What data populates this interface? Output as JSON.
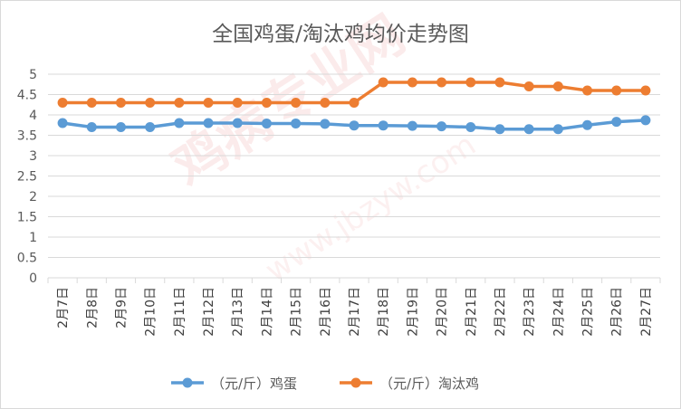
{
  "watermark": {
    "brand": "鸡病专业网",
    "url": "www.jbzyw.com"
  },
  "colors": {
    "egg": "#5b9bd5",
    "hen": "#ed7d31",
    "grid": "#d9d9d9",
    "text": "#595959"
  },
  "chart_data": {
    "type": "line",
    "title": "全国鸡蛋/淘汰鸡均价走势图",
    "categories": [
      "2月7日",
      "2月8日",
      "2月9日",
      "2月10日",
      "2月11日",
      "2月12日",
      "2月13日",
      "2月14日",
      "2月15日",
      "2月16日",
      "2月17日",
      "2月18日",
      "2月19日",
      "2月20日",
      "2月21日",
      "2月22日",
      "2月23日",
      "2月24日",
      "2月25日",
      "2月26日",
      "2月27日"
    ],
    "ylim": [
      0,
      5
    ],
    "yticks": [
      "0",
      "0.5",
      "1",
      "1.5",
      "2",
      "2.5",
      "3",
      "3.5",
      "4",
      "4.5",
      "5"
    ],
    "grid": true,
    "legend": "bottom",
    "series": [
      {
        "name": "（元/斤）鸡蛋",
        "values": [
          3.8,
          3.7,
          3.7,
          3.7,
          3.8,
          3.8,
          3.8,
          3.79,
          3.79,
          3.78,
          3.74,
          3.74,
          3.73,
          3.72,
          3.7,
          3.65,
          3.65,
          3.65,
          3.75,
          3.83,
          3.87
        ]
      },
      {
        "name": "（元/斤）淘汰鸡",
        "values": [
          4.3,
          4.3,
          4.3,
          4.3,
          4.3,
          4.3,
          4.3,
          4.3,
          4.3,
          4.3,
          4.3,
          4.8,
          4.8,
          4.8,
          4.8,
          4.8,
          4.7,
          4.7,
          4.6,
          4.6,
          4.6
        ]
      }
    ]
  }
}
